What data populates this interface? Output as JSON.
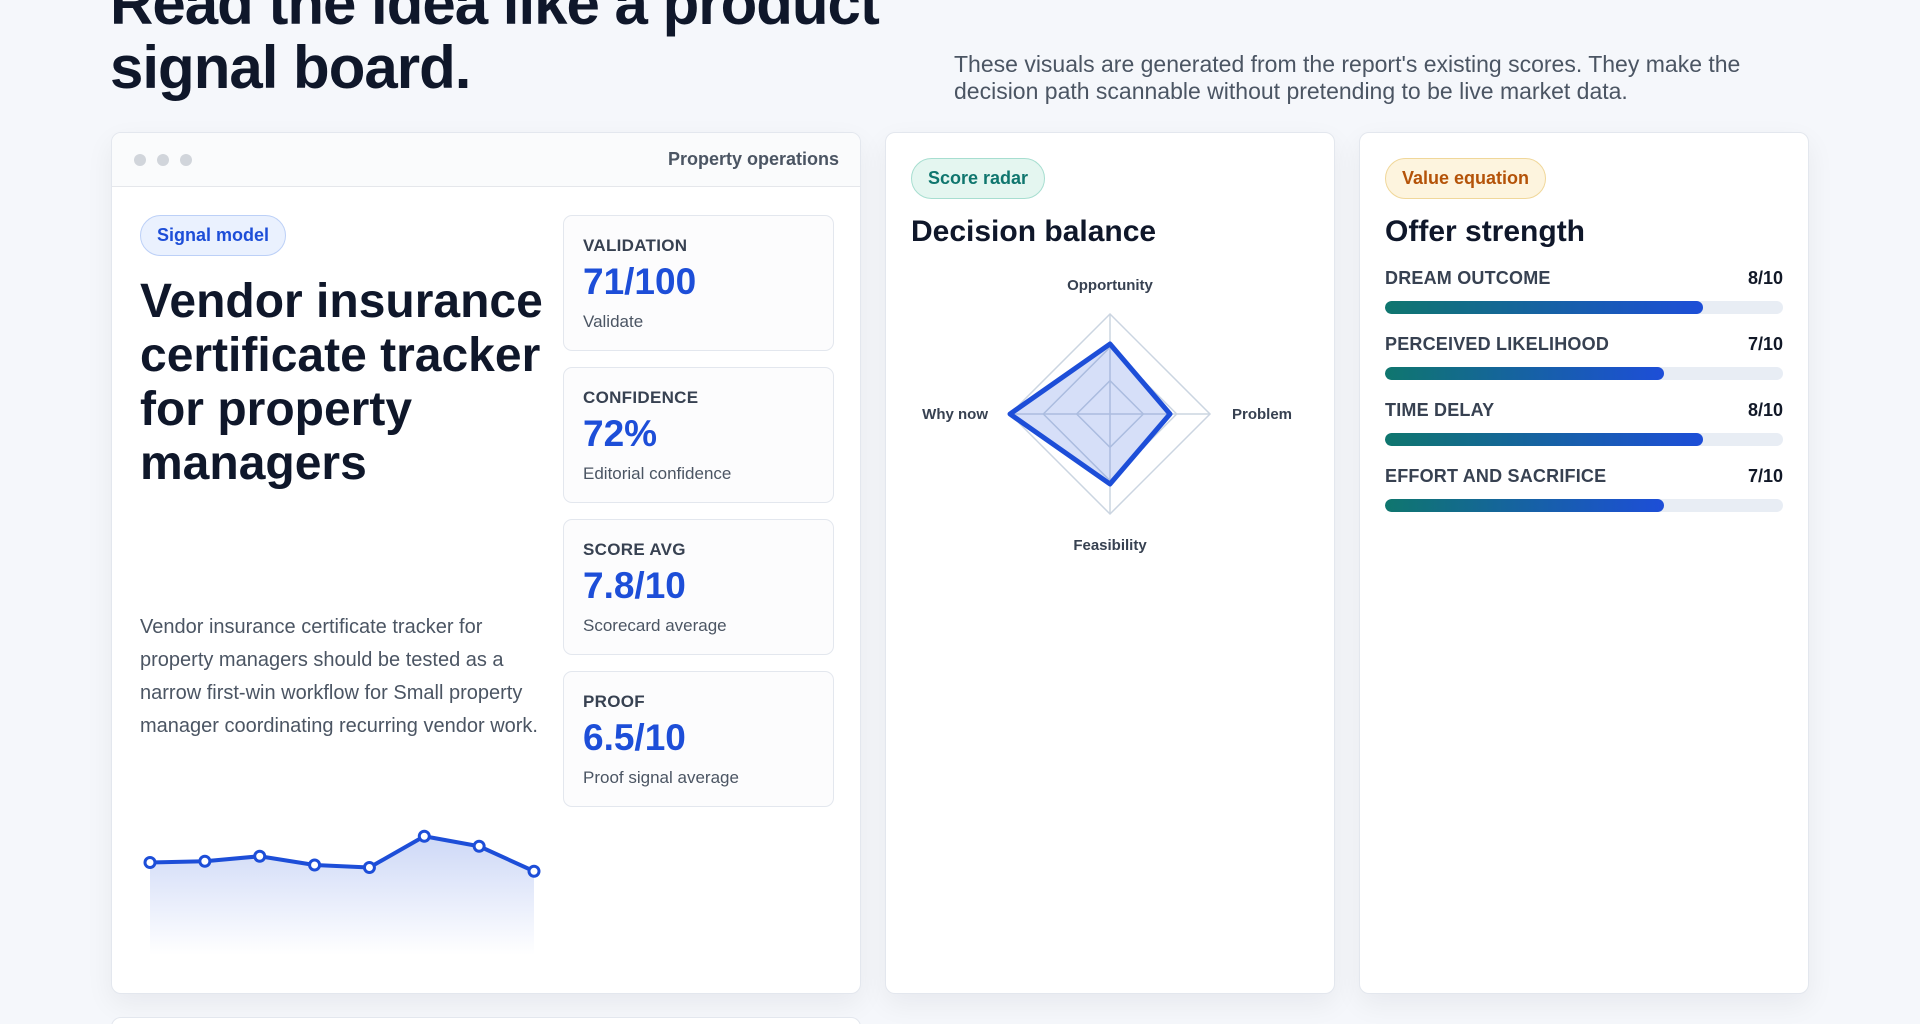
{
  "hero": {
    "title": "Read the idea like a product signal board.",
    "subtitle": "These visuals are generated from the report's existing scores. They make the decision path scannable without pretending to be live market data."
  },
  "main_card": {
    "window_title": "Property operations",
    "tag": "Signal model",
    "title": "Vendor insurance certificate tracker for property managers",
    "description": "Vendor insurance certificate tracker for property managers should be tested as a narrow first-win workflow for Small property manager coordinating recurring vendor work.",
    "metrics": [
      {
        "label": "VALIDATION",
        "value": "71/100",
        "sub": "Validate"
      },
      {
        "label": "CONFIDENCE",
        "value": "72%",
        "sub": "Editorial confidence"
      },
      {
        "label": "SCORE AVG",
        "value": "7.8/10",
        "sub": "Scorecard average"
      },
      {
        "label": "PROOF",
        "value": "6.5/10",
        "sub": "Proof signal average"
      }
    ],
    "sparkline": {
      "type": "line",
      "values": [
        6.2,
        6.3,
        6.7,
        6.0,
        5.8,
        8.3,
        7.5,
        5.5
      ],
      "ylim": [
        0,
        10
      ],
      "color": "#1d4ed8"
    }
  },
  "radar_card": {
    "tag": "Score radar",
    "title": "Decision balance",
    "chart_data": {
      "type": "radar",
      "axes": [
        "Opportunity",
        "Problem",
        "Feasibility",
        "Why now"
      ],
      "values": [
        7,
        6,
        7,
        10
      ],
      "max": 10,
      "rings": 3,
      "color": "#1d4ed8"
    }
  },
  "offer_card": {
    "tag": "Value equation",
    "title": "Offer strength",
    "chart_data": {
      "type": "bar",
      "max": 10,
      "bars": [
        {
          "label": "DREAM OUTCOME",
          "score": "8/10",
          "value": 8
        },
        {
          "label": "PERCEIVED LIKELIHOOD",
          "score": "7/10",
          "value": 7
        },
        {
          "label": "TIME DELAY",
          "score": "8/10",
          "value": 8
        },
        {
          "label": "EFFORT AND SACRIFICE",
          "score": "7/10",
          "value": 7
        }
      ]
    }
  }
}
